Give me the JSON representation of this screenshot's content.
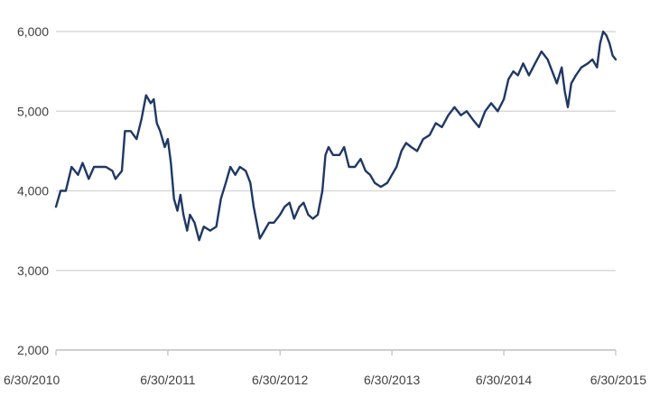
{
  "chart_data": {
    "type": "line",
    "title": "",
    "xlabel": "",
    "ylabel": "",
    "ylim": [
      2000,
      6000
    ],
    "grid": true,
    "legend": "none",
    "colors": {
      "series": "#1f3864",
      "grid": "#d9d9d9",
      "axis": "#bfbfbf",
      "text": "#404040"
    },
    "y_ticks": [
      {
        "value": 2000,
        "label": "2,000"
      },
      {
        "value": 3000,
        "label": "3,000"
      },
      {
        "value": 4000,
        "label": "4,000"
      },
      {
        "value": 5000,
        "label": "5,000"
      },
      {
        "value": 6000,
        "label": "6,000"
      }
    ],
    "x_ticks": [
      {
        "value": "2010-06-30",
        "label": "6/30/2010"
      },
      {
        "value": "2011-06-30",
        "label": "6/30/2011"
      },
      {
        "value": "2012-06-30",
        "label": "6/30/2012"
      },
      {
        "value": "2013-06-30",
        "label": "6/30/2013"
      },
      {
        "value": "2014-06-30",
        "label": "6/30/2014"
      },
      {
        "value": "2015-06-30",
        "label": "6/30/2015"
      }
    ],
    "series": [
      {
        "points": [
          [
            "2010-06-30",
            3800
          ],
          [
            "2010-07-15",
            4000
          ],
          [
            "2010-08-01",
            4000
          ],
          [
            "2010-08-20",
            4300
          ],
          [
            "2010-09-10",
            4200
          ],
          [
            "2010-09-25",
            4350
          ],
          [
            "2010-10-15",
            4150
          ],
          [
            "2010-11-01",
            4300
          ],
          [
            "2010-11-20",
            4300
          ],
          [
            "2010-12-10",
            4300
          ],
          [
            "2010-12-31",
            4250
          ],
          [
            "2011-01-10",
            4150
          ],
          [
            "2011-01-31",
            4250
          ],
          [
            "2011-02-10",
            4750
          ],
          [
            "2011-03-01",
            4750
          ],
          [
            "2011-03-20",
            4650
          ],
          [
            "2011-04-05",
            4900
          ],
          [
            "2011-04-20",
            5200
          ],
          [
            "2011-05-05",
            5100
          ],
          [
            "2011-05-15",
            5150
          ],
          [
            "2011-05-25",
            4850
          ],
          [
            "2011-06-05",
            4750
          ],
          [
            "2011-06-20",
            4550
          ],
          [
            "2011-06-30",
            4650
          ],
          [
            "2011-07-10",
            4350
          ],
          [
            "2011-07-20",
            3900
          ],
          [
            "2011-07-31",
            3750
          ],
          [
            "2011-08-10",
            3950
          ],
          [
            "2011-08-20",
            3700
          ],
          [
            "2011-09-01",
            3500
          ],
          [
            "2011-09-10",
            3700
          ],
          [
            "2011-09-25",
            3600
          ],
          [
            "2011-10-10",
            3380
          ],
          [
            "2011-10-25",
            3550
          ],
          [
            "2011-11-15",
            3500
          ],
          [
            "2011-12-05",
            3550
          ],
          [
            "2011-12-20",
            3900
          ],
          [
            "2012-01-05",
            4100
          ],
          [
            "2012-01-20",
            4300
          ],
          [
            "2012-02-05",
            4200
          ],
          [
            "2012-02-20",
            4300
          ],
          [
            "2012-03-10",
            4250
          ],
          [
            "2012-03-25",
            4100
          ],
          [
            "2012-04-05",
            3800
          ],
          [
            "2012-04-15",
            3600
          ],
          [
            "2012-04-25",
            3400
          ],
          [
            "2012-05-10",
            3500
          ],
          [
            "2012-05-25",
            3600
          ],
          [
            "2012-06-10",
            3600
          ],
          [
            "2012-06-30",
            3700
          ],
          [
            "2012-07-15",
            3800
          ],
          [
            "2012-07-31",
            3850
          ],
          [
            "2012-08-15",
            3650
          ],
          [
            "2012-09-01",
            3800
          ],
          [
            "2012-09-15",
            3850
          ],
          [
            "2012-09-30",
            3700
          ],
          [
            "2012-10-15",
            3650
          ],
          [
            "2012-10-31",
            3700
          ],
          [
            "2012-11-15",
            4000
          ],
          [
            "2012-11-25",
            4450
          ],
          [
            "2012-12-05",
            4550
          ],
          [
            "2012-12-20",
            4450
          ],
          [
            "2013-01-10",
            4450
          ],
          [
            "2013-01-25",
            4550
          ],
          [
            "2013-02-10",
            4300
          ],
          [
            "2013-03-01",
            4300
          ],
          [
            "2013-03-20",
            4400
          ],
          [
            "2013-04-05",
            4250
          ],
          [
            "2013-04-20",
            4200
          ],
          [
            "2013-05-05",
            4100
          ],
          [
            "2013-05-25",
            4050
          ],
          [
            "2013-06-15",
            4100
          ],
          [
            "2013-06-30",
            4200
          ],
          [
            "2013-07-15",
            4300
          ],
          [
            "2013-07-31",
            4500
          ],
          [
            "2013-08-15",
            4600
          ],
          [
            "2013-09-01",
            4550
          ],
          [
            "2013-09-20",
            4500
          ],
          [
            "2013-10-10",
            4650
          ],
          [
            "2013-10-31",
            4700
          ],
          [
            "2013-11-20",
            4850
          ],
          [
            "2013-12-10",
            4800
          ],
          [
            "2013-12-31",
            4950
          ],
          [
            "2014-01-20",
            5050
          ],
          [
            "2014-02-10",
            4950
          ],
          [
            "2014-03-01",
            5000
          ],
          [
            "2014-03-20",
            4900
          ],
          [
            "2014-04-10",
            4800
          ],
          [
            "2014-04-30",
            5000
          ],
          [
            "2014-05-20",
            5100
          ],
          [
            "2014-06-10",
            5000
          ],
          [
            "2014-06-30",
            5150
          ],
          [
            "2014-07-15",
            5400
          ],
          [
            "2014-07-31",
            5500
          ],
          [
            "2014-08-15",
            5450
          ],
          [
            "2014-09-01",
            5600
          ],
          [
            "2014-09-20",
            5450
          ],
          [
            "2014-10-10",
            5600
          ],
          [
            "2014-10-31",
            5750
          ],
          [
            "2014-11-20",
            5650
          ],
          [
            "2014-12-05",
            5500
          ],
          [
            "2014-12-20",
            5350
          ],
          [
            "2015-01-05",
            5550
          ],
          [
            "2015-01-15",
            5250
          ],
          [
            "2015-01-25",
            5050
          ],
          [
            "2015-02-05",
            5350
          ],
          [
            "2015-02-20",
            5450
          ],
          [
            "2015-03-10",
            5550
          ],
          [
            "2015-03-31",
            5600
          ],
          [
            "2015-04-15",
            5650
          ],
          [
            "2015-04-30",
            5550
          ],
          [
            "2015-05-10",
            5850
          ],
          [
            "2015-05-20",
            6000
          ],
          [
            "2015-05-31",
            5950
          ],
          [
            "2015-06-10",
            5850
          ],
          [
            "2015-06-20",
            5700
          ],
          [
            "2015-06-30",
            5650
          ]
        ]
      }
    ]
  }
}
